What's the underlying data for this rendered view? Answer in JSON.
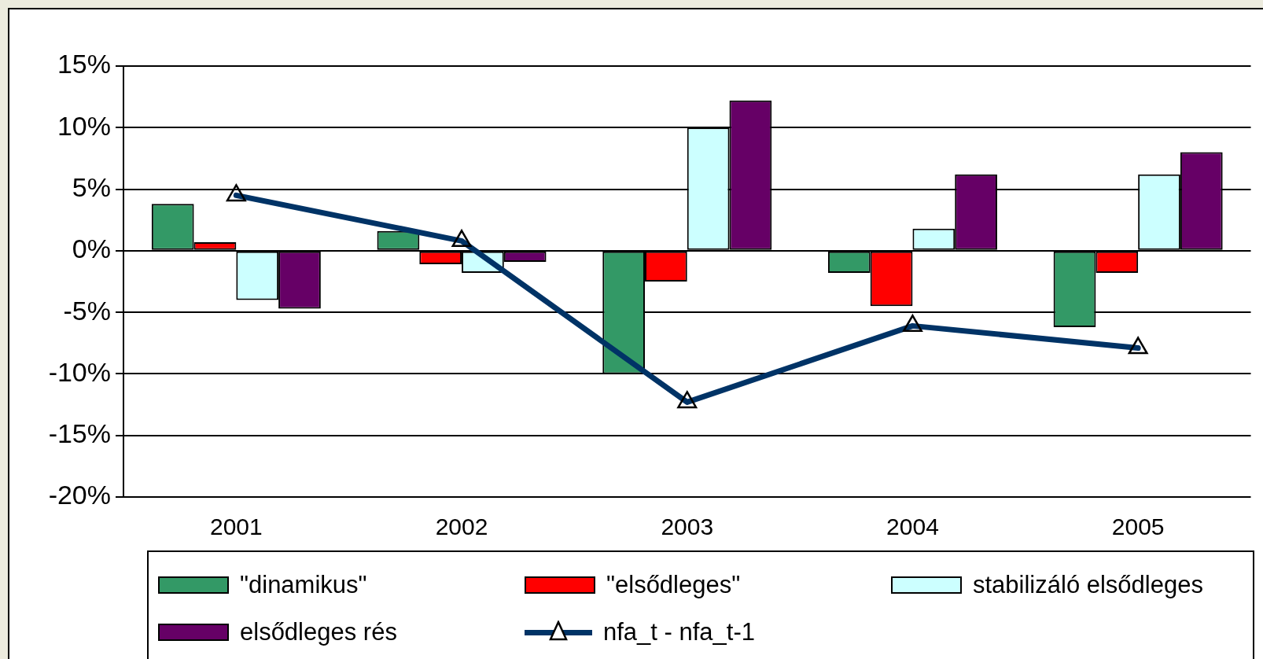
{
  "chart_data": {
    "type": "bar",
    "categories": [
      "2001",
      "2002",
      "2003",
      "2004",
      "2005"
    ],
    "series": [
      {
        "name": "\"dinamikus\"",
        "color": "#339966",
        "values": [
          3.8,
          1.6,
          -10.0,
          -1.8,
          -6.2
        ]
      },
      {
        "name": "\"elsődleges\"",
        "color": "#ff0000",
        "values": [
          0.7,
          -1.1,
          -2.5,
          -4.5,
          -1.8
        ]
      },
      {
        "name": "stabilizáló elsődleges",
        "color": "#ccffff",
        "values": [
          -4.0,
          -1.8,
          10.0,
          1.8,
          6.2
        ]
      },
      {
        "name": "elsődleges rés",
        "color": "#660066",
        "values": [
          -4.7,
          -0.9,
          12.2,
          6.2,
          8.0
        ]
      },
      {
        "name": "nfa_t - nfa_t-1",
        "type": "line",
        "color": "#003366",
        "marker": "triangle",
        "values": [
          4.5,
          0.8,
          -12.3,
          -6.1,
          -7.9
        ]
      }
    ],
    "ylim": [
      -20,
      15
    ],
    "yticks": [
      {
        "value": -20,
        "label": "-20%"
      },
      {
        "value": -15,
        "label": "-15%"
      },
      {
        "value": -10,
        "label": "-10%"
      },
      {
        "value": -5,
        "label": "-5%"
      },
      {
        "value": 0,
        "label": "0%"
      },
      {
        "value": 5,
        "label": "5%"
      },
      {
        "value": 10,
        "label": "10%"
      },
      {
        "value": 15,
        "label": "15%"
      }
    ],
    "grid": "y",
    "legend": "bottom"
  }
}
